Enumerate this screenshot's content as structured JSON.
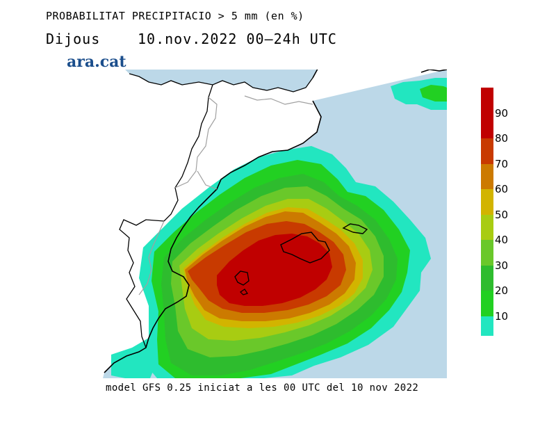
{
  "header": {
    "title": "PROBABILITAT PRECIPITACIO > 5 mm (en %)",
    "day": "Dijous",
    "date_range": "10.nov.2022 00–24h UTC"
  },
  "brand": {
    "logo_text": "ara.cat",
    "color": "#1b4e8c"
  },
  "footer": {
    "model_info": "model GFS 0.25 iniciat a les 00 UTC del 10 nov 2022"
  },
  "legend": {
    "levels": [
      {
        "label": "90",
        "color": "#c00000"
      },
      {
        "label": "80",
        "color": "#c83a00"
      },
      {
        "label": "70",
        "color": "#cc7a00"
      },
      {
        "label": "60",
        "color": "#d2b400"
      },
      {
        "label": "50",
        "color": "#a8cc12"
      },
      {
        "label": "40",
        "color": "#6ac82a"
      },
      {
        "label": "30",
        "color": "#2ebc2e"
      },
      {
        "label": "20",
        "color": "#22d022"
      },
      {
        "label": "10",
        "color": "#22e6c0"
      }
    ],
    "top_color": "#c00000"
  },
  "map_colors": {
    "sea": "#bcd8e8",
    "land": "#ffffff",
    "coast": "#000000",
    "borders": "#a0a0a0"
  }
}
